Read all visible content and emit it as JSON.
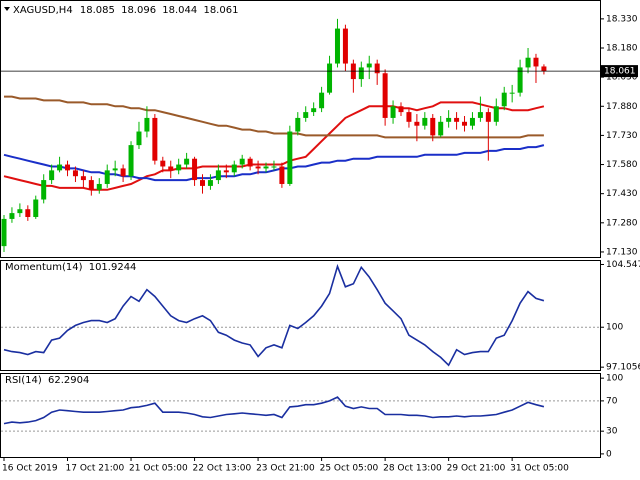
{
  "chart_data": [
    {
      "type": "candlestick",
      "title": "XAGUSD,H4",
      "categories": [
        "16 Oct 2019",
        null,
        null,
        null,
        null,
        null,
        null,
        null,
        "17 Oct 21:00",
        null,
        null,
        null,
        null,
        null,
        null,
        null,
        "21 Oct 05:00",
        null,
        null,
        null,
        null,
        null,
        null,
        null,
        "22 Oct 13:00",
        null,
        null,
        null,
        null,
        null,
        null,
        null,
        "23 Oct 21:00",
        null,
        null,
        null,
        null,
        null,
        null,
        null,
        "25 Oct 05:00",
        null,
        null,
        null,
        null,
        null,
        null,
        null,
        "28 Oct 13:00",
        null,
        null,
        null,
        null,
        null,
        null,
        null,
        "29 Oct 21:00",
        null,
        null,
        null,
        null,
        null,
        null,
        null,
        "31 Oct 05:00",
        null,
        null,
        null,
        null
      ],
      "open": [
        17.16,
        17.3,
        17.33,
        17.35,
        17.31,
        17.4,
        17.5,
        17.55,
        17.58,
        17.55,
        17.52,
        17.5,
        17.45,
        17.48,
        17.55,
        17.56,
        17.52,
        17.68,
        17.75,
        17.82,
        17.6,
        17.57,
        17.55,
        17.58,
        17.61,
        17.5,
        17.47,
        17.5,
        17.55,
        17.54,
        17.58,
        17.61,
        17.57,
        17.56,
        17.57,
        17.57,
        17.48,
        17.75,
        17.82,
        17.85,
        17.87,
        17.95,
        18.1,
        18.28,
        18.1,
        18.02,
        18.08,
        18.1,
        18.05,
        17.82,
        17.88,
        17.85,
        17.8,
        17.78,
        17.82,
        17.73,
        17.8,
        17.82,
        17.8,
        17.78,
        17.82,
        17.85,
        17.8,
        17.88,
        17.95,
        17.95,
        18.08,
        18.13,
        18.085
      ],
      "high": [
        17.32,
        17.36,
        17.38,
        17.37,
        17.42,
        17.53,
        17.58,
        17.62,
        17.6,
        17.57,
        17.55,
        17.52,
        17.51,
        17.58,
        17.6,
        17.58,
        17.7,
        17.8,
        17.88,
        17.84,
        17.62,
        17.6,
        17.61,
        17.64,
        17.62,
        17.53,
        17.53,
        17.58,
        17.58,
        17.6,
        17.63,
        17.62,
        17.6,
        17.59,
        17.6,
        17.59,
        17.78,
        17.85,
        17.88,
        17.9,
        17.98,
        18.14,
        18.33,
        18.3,
        18.12,
        18.11,
        18.14,
        18.12,
        18.07,
        17.91,
        17.9,
        17.87,
        17.84,
        17.85,
        17.84,
        17.83,
        17.86,
        17.85,
        17.83,
        17.85,
        17.93,
        17.87,
        17.92,
        17.98,
        17.99,
        18.12,
        18.18,
        18.15,
        18.096
      ],
      "low": [
        17.13,
        17.28,
        17.31,
        17.29,
        17.3,
        17.38,
        17.48,
        17.54,
        17.52,
        17.49,
        17.46,
        17.42,
        17.43,
        17.46,
        17.52,
        17.49,
        17.5,
        17.66,
        17.72,
        17.58,
        17.54,
        17.51,
        17.53,
        17.56,
        17.47,
        17.43,
        17.45,
        17.48,
        17.51,
        17.52,
        17.56,
        17.55,
        17.53,
        17.54,
        17.55,
        17.46,
        17.47,
        17.73,
        17.8,
        17.83,
        17.85,
        17.94,
        18.08,
        18.06,
        17.95,
        17.98,
        18.02,
        17.99,
        17.78,
        17.79,
        17.83,
        17.77,
        17.7,
        17.76,
        17.7,
        17.72,
        17.77,
        17.76,
        17.75,
        17.76,
        17.8,
        17.6,
        17.78,
        17.86,
        17.9,
        17.93,
        18.05,
        18.0,
        18.044
      ],
      "close": [
        17.3,
        17.33,
        17.35,
        17.31,
        17.4,
        17.5,
        17.55,
        17.58,
        17.55,
        17.52,
        17.5,
        17.45,
        17.48,
        17.55,
        17.56,
        17.52,
        17.68,
        17.75,
        17.82,
        17.6,
        17.57,
        17.55,
        17.58,
        17.61,
        17.5,
        17.47,
        17.5,
        17.55,
        17.54,
        17.58,
        17.61,
        17.57,
        17.56,
        17.57,
        17.57,
        17.48,
        17.75,
        17.82,
        17.85,
        17.87,
        17.95,
        18.1,
        18.28,
        18.1,
        18.02,
        18.08,
        18.1,
        18.05,
        17.82,
        17.88,
        17.85,
        17.8,
        17.78,
        17.82,
        17.73,
        17.8,
        17.82,
        17.8,
        17.78,
        17.82,
        17.85,
        17.8,
        17.88,
        17.95,
        17.95,
        18.08,
        18.13,
        18.085,
        18.061
      ],
      "up_color": "#00b400",
      "down_color": "#e00000",
      "series": [
        {
          "color": "#e01010",
          "values": [
            17.52,
            17.51,
            17.5,
            17.49,
            17.48,
            17.47,
            17.47,
            17.46,
            17.46,
            17.46,
            17.46,
            17.45,
            17.45,
            17.45,
            17.46,
            17.47,
            17.48,
            17.5,
            17.52,
            17.53,
            17.55,
            17.55,
            17.56,
            17.56,
            17.56,
            17.57,
            17.57,
            17.57,
            17.57,
            17.57,
            17.57,
            17.58,
            17.58,
            17.58,
            17.58,
            17.58,
            17.6,
            17.61,
            17.62,
            17.66,
            17.7,
            17.74,
            17.78,
            17.82,
            17.84,
            17.86,
            17.88,
            17.88,
            17.88,
            17.88,
            17.87,
            17.87,
            17.86,
            17.87,
            17.88,
            17.9,
            17.9,
            17.9,
            17.9,
            17.9,
            17.89,
            17.88,
            17.87,
            17.87,
            17.86,
            17.86,
            17.86,
            17.87,
            17.88
          ]
        },
        {
          "color": "#9a5a2a",
          "values": [
            17.93,
            17.93,
            17.92,
            17.92,
            17.92,
            17.91,
            17.91,
            17.91,
            17.9,
            17.9,
            17.9,
            17.89,
            17.89,
            17.89,
            17.88,
            17.88,
            17.87,
            17.87,
            17.86,
            17.86,
            17.85,
            17.84,
            17.83,
            17.82,
            17.81,
            17.8,
            17.79,
            17.78,
            17.78,
            17.77,
            17.76,
            17.76,
            17.75,
            17.75,
            17.74,
            17.74,
            17.74,
            17.74,
            17.73,
            17.73,
            17.73,
            17.73,
            17.73,
            17.73,
            17.73,
            17.73,
            17.73,
            17.73,
            17.72,
            17.72,
            17.72,
            17.72,
            17.72,
            17.72,
            17.72,
            17.72,
            17.72,
            17.72,
            17.72,
            17.72,
            17.72,
            17.72,
            17.72,
            17.72,
            17.72,
            17.72,
            17.73,
            17.73,
            17.73
          ]
        },
        {
          "color": "#1a2fc8",
          "values": [
            17.63,
            17.62,
            17.61,
            17.6,
            17.59,
            17.58,
            17.57,
            17.57,
            17.56,
            17.56,
            17.55,
            17.54,
            17.54,
            17.53,
            17.53,
            17.52,
            17.52,
            17.51,
            17.51,
            17.5,
            17.5,
            17.5,
            17.5,
            17.5,
            17.51,
            17.51,
            17.51,
            17.52,
            17.52,
            17.52,
            17.53,
            17.53,
            17.54,
            17.54,
            17.55,
            17.56,
            17.56,
            17.57,
            17.57,
            17.58,
            17.59,
            17.59,
            17.6,
            17.6,
            17.61,
            17.61,
            17.61,
            17.62,
            17.62,
            17.62,
            17.62,
            17.62,
            17.62,
            17.63,
            17.63,
            17.63,
            17.63,
            17.63,
            17.64,
            17.64,
            17.64,
            17.65,
            17.65,
            17.66,
            17.66,
            17.66,
            17.67,
            17.67,
            17.68
          ]
        }
      ],
      "current_price_line": true,
      "ylim": [
        17.104,
        18.422
      ],
      "yticks": [
        {
          "value": 18.33,
          "label": "18.330"
        },
        {
          "value": 18.18,
          "label": "18.180"
        },
        {
          "value": 18.03,
          "label": "18.030"
        },
        {
          "value": 17.88,
          "label": "17.880"
        },
        {
          "value": 17.73,
          "label": "17.730"
        },
        {
          "value": 17.58,
          "label": "17.580"
        },
        {
          "value": 17.43,
          "label": "17.430"
        },
        {
          "value": 17.28,
          "label": "17.280"
        },
        {
          "value": 17.13,
          "label": "17.130"
        }
      ]
    },
    {
      "type": "line",
      "title": "Momentum(14)",
      "color": "#1a2fa0",
      "values": [
        98.37,
        98.23,
        98.16,
        98.02,
        98.23,
        98.16,
        99.07,
        99.21,
        99.77,
        100.13,
        100.34,
        100.48,
        100.48,
        100.34,
        100.62,
        101.53,
        102.23,
        101.88,
        102.72,
        102.23,
        101.53,
        100.83,
        100.48,
        100.34,
        100.62,
        100.83,
        100.48,
        99.63,
        99.42,
        99.07,
        98.86,
        98.72,
        97.88,
        98.51,
        98.72,
        98.51,
        100.13,
        99.91,
        100.34,
        100.83,
        101.53,
        102.44,
        104.41,
        102.93,
        103.15,
        104.34,
        103.64,
        102.72,
        101.74,
        101.18,
        100.62,
        99.42,
        99.07,
        98.72,
        98.23,
        97.81,
        97.25,
        98.37,
        98.02,
        98.16,
        98.23,
        98.23,
        99.21,
        99.42,
        100.48,
        101.74,
        102.58,
        102.09,
        101.9244
      ],
      "ylim": [
        96.9,
        104.8
      ],
      "yticks": [
        104.5477,
        100,
        97.1056
      ],
      "levels": [
        100
      ]
    },
    {
      "type": "line",
      "title": "RSI(14)",
      "color": "#1a2fa0",
      "values": [
        40,
        42,
        41,
        42,
        44,
        48,
        55,
        58,
        57,
        56,
        55,
        55,
        55,
        56,
        57,
        58,
        61,
        62,
        64,
        67,
        55,
        55,
        55,
        54,
        52,
        49,
        48,
        50,
        52,
        53,
        54,
        53,
        52,
        51,
        52,
        48,
        62,
        63,
        65,
        65,
        67,
        70,
        75,
        63,
        60,
        62,
        60,
        60,
        52,
        52,
        52,
        51,
        51,
        50,
        48,
        49,
        49,
        50,
        49,
        50,
        50,
        51,
        52,
        55,
        58,
        63,
        68,
        65,
        62.2904
      ],
      "ylim": [
        -4.1,
        105.5
      ],
      "yticks": [
        100,
        70,
        30,
        0
      ],
      "levels": [
        70,
        30
      ]
    }
  ]
}
